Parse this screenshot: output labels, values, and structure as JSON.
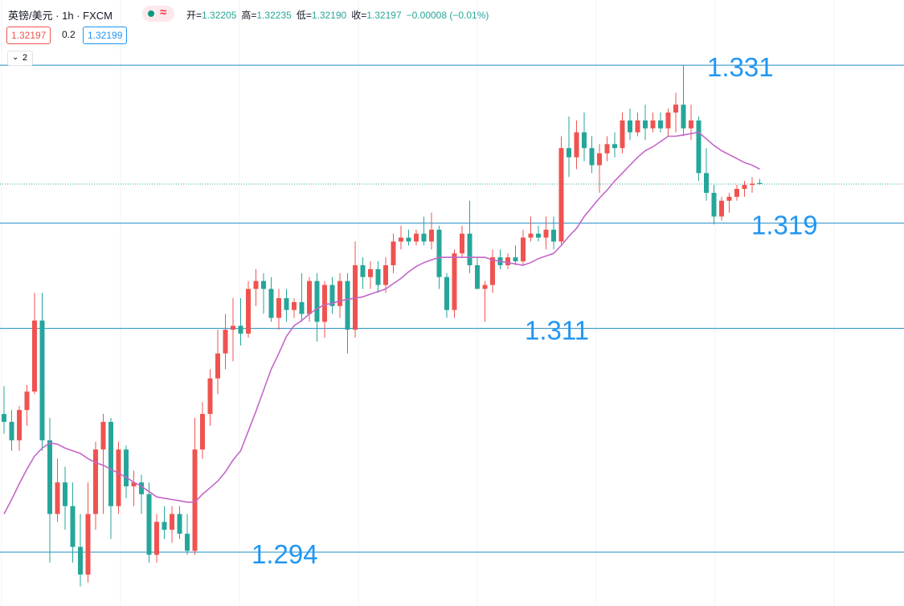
{
  "chart_data": {
    "type": "candlestick",
    "symbol": "英镑/美元 · 1h · FXCM",
    "ohlc": [
      {
        "label": "开=",
        "value": "1.32205"
      },
      {
        "label": "高=",
        "value": "1.32235"
      },
      {
        "label": "低=",
        "value": "1.32190"
      },
      {
        "label": "收=",
        "value": "1.32197"
      }
    ],
    "change": "−0.00008 (−0.01%)",
    "last_price": 1.32197,
    "spread": 0.2,
    "ask": 1.32199,
    "indicator_count": 2,
    "up_color": "#ef5350",
    "down_color": "#26a69a",
    "ylim": [
      1.28991,
      1.33595
    ],
    "open": [
      1.3045,
      1.3039,
      1.3025,
      1.3048,
      1.3062,
      1.3116,
      1.3025,
      1.2969,
      1.2993,
      1.2975,
      1.2944,
      1.2923,
      1.2969,
      1.3018,
      1.3039,
      1.2975,
      1.3018,
      1.299,
      1.2993,
      1.2984,
      1.2938,
      1.2963,
      1.2957,
      1.2969,
      1.2954,
      1.2941,
      1.3018,
      1.3045,
      1.3072,
      1.3091,
      1.3109,
      1.3112,
      1.3106,
      1.314,
      1.3146,
      1.314,
      1.3118,
      1.3133,
      1.3124,
      1.313,
      1.3121,
      1.3146,
      1.3115,
      1.3143,
      1.3127,
      1.3146,
      1.3109,
      1.3158,
      1.3149,
      1.3155,
      1.3143,
      1.3158,
      1.3176,
      1.3179,
      1.3176,
      1.3182,
      1.3176,
      1.3185,
      1.3149,
      1.3124,
      1.3167,
      1.3182,
      1.3158,
      1.314,
      1.3143,
      1.3164,
      1.3158,
      1.3164,
      1.3161,
      1.3179,
      1.3182,
      1.3179,
      1.3185,
      1.3176,
      1.3247,
      1.324,
      1.3259,
      1.3247,
      1.3234,
      1.3243,
      1.325,
      1.3247,
      1.3268,
      1.3259,
      1.3268,
      1.3262,
      1.3268,
      1.3262,
      1.3274,
      1.328,
      1.3262,
      1.3268,
      1.3228,
      1.3213,
      1.3195,
      1.3207,
      1.321,
      1.3216,
      1.3219,
      1.32205
    ],
    "high": [
      1.3066,
      1.3048,
      1.3051,
      1.3067,
      1.3137,
      1.3137,
      1.3042,
      1.3011,
      1.3005,
      1.2993,
      1.2969,
      1.2993,
      1.3024,
      1.3045,
      1.3042,
      1.3024,
      1.3021,
      1.3002,
      1.2999,
      1.2993,
      1.2969,
      1.2975,
      1.2975,
      1.2975,
      1.2969,
      1.3042,
      1.3054,
      1.3079,
      1.3109,
      1.3121,
      1.3133,
      1.3133,
      1.3146,
      1.3155,
      1.3152,
      1.3149,
      1.314,
      1.314,
      1.3133,
      1.3152,
      1.3149,
      1.3152,
      1.3146,
      1.3149,
      1.3152,
      1.3152,
      1.3176,
      1.3164,
      1.3161,
      1.3161,
      1.3164,
      1.3182,
      1.3188,
      1.3185,
      1.3185,
      1.3195,
      1.3198,
      1.3188,
      1.3152,
      1.317,
      1.3188,
      1.3207,
      1.3164,
      1.3146,
      1.317,
      1.317,
      1.3167,
      1.3173,
      1.3185,
      1.3195,
      1.3188,
      1.3195,
      1.3195,
      1.3256,
      1.3271,
      1.3268,
      1.3274,
      1.3256,
      1.325,
      1.3256,
      1.3259,
      1.3274,
      1.3277,
      1.3274,
      1.328,
      1.3274,
      1.3274,
      1.3277,
      1.3289,
      1.331,
      1.328,
      1.3271,
      1.3247,
      1.3219,
      1.321,
      1.3213,
      1.3219,
      1.3222,
      1.3225,
      1.32235
    ],
    "low": [
      1.303,
      1.3017,
      1.3017,
      1.3036,
      1.306,
      1.3017,
      1.2932,
      1.2963,
      1.2957,
      1.2932,
      1.2914,
      1.2917,
      1.2957,
      1.2969,
      1.295,
      1.2969,
      1.2981,
      1.2975,
      1.2969,
      1.2932,
      1.2932,
      1.295,
      1.2947,
      1.295,
      1.2938,
      1.2938,
      1.3011,
      1.3036,
      1.306,
      1.3079,
      1.3085,
      1.3097,
      1.3103,
      1.3127,
      1.3121,
      1.3115,
      1.3109,
      1.3115,
      1.3118,
      1.3115,
      1.3115,
      1.31,
      1.3103,
      1.3121,
      1.3118,
      1.3091,
      1.3103,
      1.314,
      1.314,
      1.3137,
      1.3137,
      1.3152,
      1.317,
      1.3173,
      1.3173,
      1.3173,
      1.317,
      1.314,
      1.3118,
      1.3118,
      1.3164,
      1.3152,
      1.314,
      1.3115,
      1.3137,
      1.3155,
      1.3155,
      1.3158,
      1.3158,
      1.3176,
      1.3176,
      1.317,
      1.317,
      1.3173,
      1.3225,
      1.3231,
      1.3237,
      1.3228,
      1.3213,
      1.3237,
      1.324,
      1.3243,
      1.3253,
      1.3256,
      1.3253,
      1.3259,
      1.3259,
      1.3256,
      1.3259,
      1.3256,
      1.3253,
      1.3222,
      1.3207,
      1.3189,
      1.3192,
      1.3198,
      1.3207,
      1.321,
      1.3213,
      1.3219
    ],
    "close": [
      1.3039,
      1.3025,
      1.3048,
      1.3062,
      1.3116,
      1.3025,
      1.2969,
      1.2993,
      1.2975,
      1.2944,
      1.2923,
      1.2969,
      1.3018,
      1.3039,
      1.2975,
      1.3018,
      1.299,
      1.2993,
      1.2984,
      1.2938,
      1.2963,
      1.2957,
      1.2969,
      1.2954,
      1.2941,
      1.3018,
      1.3045,
      1.3072,
      1.3091,
      1.3109,
      1.3112,
      1.3106,
      1.314,
      1.3146,
      1.314,
      1.3118,
      1.3133,
      1.3124,
      1.313,
      1.3121,
      1.3146,
      1.3115,
      1.3143,
      1.3127,
      1.3146,
      1.3109,
      1.3158,
      1.3149,
      1.3155,
      1.3143,
      1.3158,
      1.3176,
      1.3179,
      1.3176,
      1.3182,
      1.3176,
      1.3185,
      1.3149,
      1.3124,
      1.3167,
      1.3182,
      1.3158,
      1.314,
      1.3143,
      1.3164,
      1.3158,
      1.3164,
      1.3161,
      1.3179,
      1.3182,
      1.3179,
      1.3185,
      1.3176,
      1.3247,
      1.324,
      1.3259,
      1.3247,
      1.3234,
      1.3243,
      1.325,
      1.3247,
      1.3268,
      1.3259,
      1.3268,
      1.3262,
      1.3268,
      1.3262,
      1.3274,
      1.328,
      1.3262,
      1.3268,
      1.3228,
      1.3213,
      1.3195,
      1.3207,
      1.321,
      1.3216,
      1.3219,
      1.322,
      1.32197
    ],
    "ma": {
      "color": "#c465c9",
      "values": [
        1.2969,
        1.298,
        1.2992,
        1.3003,
        1.3013,
        1.3019,
        1.3023,
        1.3022,
        1.3019,
        1.3017,
        1.3015,
        1.3011,
        1.3008,
        1.3006,
        1.3003,
        1.3,
        1.2997,
        1.2993,
        1.299,
        1.2986,
        1.2982,
        1.2981,
        1.298,
        1.2979,
        1.2978,
        1.2978,
        1.2984,
        1.2989,
        1.2994,
        1.3001,
        1.301,
        1.3017,
        1.3032,
        1.3047,
        1.3063,
        1.3079,
        1.3091,
        1.3104,
        1.3112,
        1.3116,
        1.3121,
        1.3125,
        1.3128,
        1.3129,
        1.3131,
        1.3132,
        1.3133,
        1.3134,
        1.3136,
        1.3138,
        1.314,
        1.3144,
        1.3148,
        1.3153,
        1.3157,
        1.316,
        1.3162,
        1.3164,
        1.3164,
        1.3164,
        1.3164,
        1.3164,
        1.3164,
        1.3164,
        1.3162,
        1.3161,
        1.316,
        1.3159,
        1.3158,
        1.316,
        1.3163,
        1.3165,
        1.3167,
        1.3173,
        1.318,
        1.3186,
        1.3195,
        1.3202,
        1.3209,
        1.3215,
        1.3222,
        1.3228,
        1.3234,
        1.324,
        1.3245,
        1.3248,
        1.3252,
        1.3256,
        1.3256,
        1.3257,
        1.3258,
        1.3259,
        1.3254,
        1.3249,
        1.3245,
        1.3242,
        1.3239,
        1.3236,
        1.3234,
        1.3231
      ]
    },
    "levels": [
      1.331,
      1.319,
      1.311,
      1.294
    ],
    "level_color": "#1e8bc3",
    "level_label_color": "#2196f3"
  }
}
